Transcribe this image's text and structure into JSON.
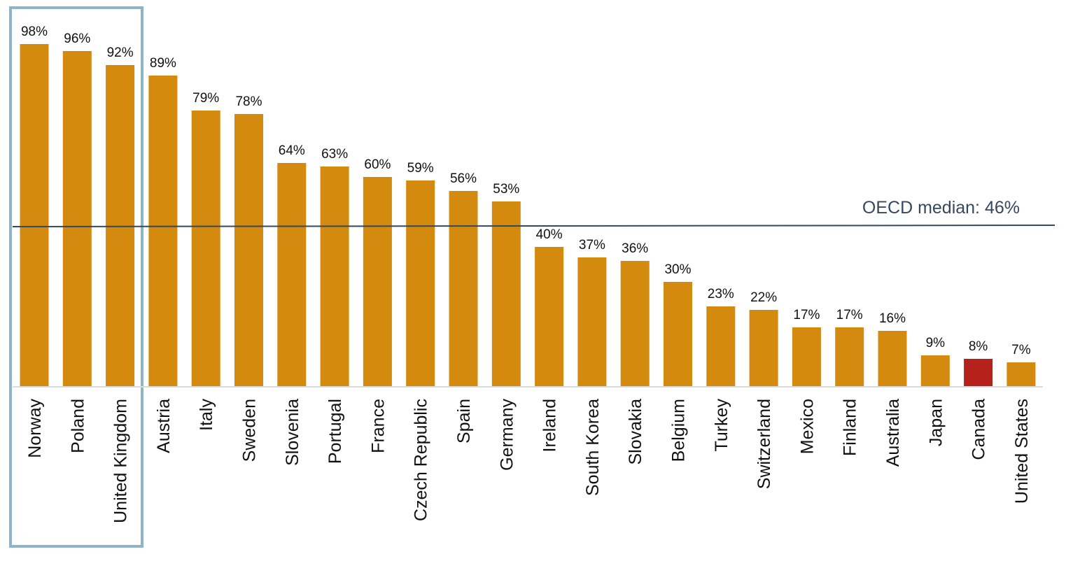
{
  "chart_data": {
    "type": "bar",
    "title": "",
    "xlabel": "",
    "ylabel": "",
    "ylim": [
      0,
      100
    ],
    "categories": [
      "Norway",
      "Poland",
      "United Kingdom",
      "Austria",
      "Italy",
      "Sweden",
      "Slovenia",
      "Portugal",
      "France",
      "Czech Republic",
      "Spain",
      "Germany",
      "Ireland",
      "South Korea",
      "Slovakia",
      "Belgium",
      "Turkey",
      "Switzerland",
      "Mexico",
      "Finland",
      "Australia",
      "Japan",
      "Canada",
      "United States"
    ],
    "values": [
      98,
      96,
      92,
      89,
      79,
      78,
      64,
      63,
      60,
      59,
      56,
      53,
      40,
      37,
      36,
      30,
      23,
      22,
      17,
      17,
      16,
      9,
      8,
      7
    ],
    "value_labels": [
      "98%",
      "96%",
      "92%",
      "89%",
      "79%",
      "78%",
      "64%",
      "63%",
      "60%",
      "59%",
      "56%",
      "53%",
      "40%",
      "37%",
      "36%",
      "30%",
      "23%",
      "22%",
      "17%",
      "17%",
      "16%",
      "9%",
      "8%",
      "7%"
    ],
    "reference_line": {
      "value": 46,
      "label": "OECD median: 46%",
      "color": "#34495e"
    },
    "highlight_group": [
      "Norway",
      "Poland",
      "United Kingdom"
    ],
    "highlight_box_color": "#8fb3c8",
    "bar_color": "#d4890f",
    "highlight_bar": "Canada",
    "highlight_bar_color": "#b5211b",
    "grid": false,
    "legend": "none"
  }
}
